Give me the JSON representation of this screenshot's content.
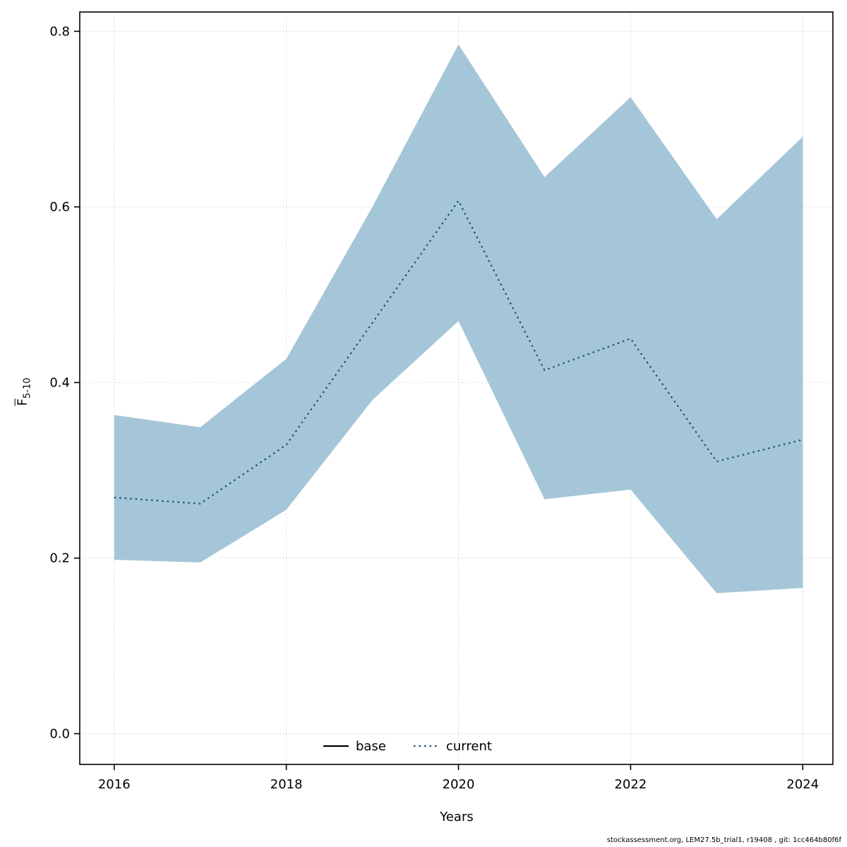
{
  "figure": {
    "footer_credit": "stockassessment.org, LEM27.5b_trial1, r19408 , git: 1cc464b80f6f"
  },
  "chart_data": {
    "type": "line",
    "title": "",
    "xlabel": "Years",
    "ylabel_base": "F",
    "ylabel_sub": "5-10",
    "x": [
      2016,
      2017,
      2018,
      2019,
      2020,
      2021,
      2022,
      2023,
      2024
    ],
    "series": [
      {
        "name": "current",
        "style": "dotted",
        "color": "#15527d",
        "values": [
          0.269,
          0.262,
          0.329,
          0.468,
          0.607,
          0.414,
          0.45,
          0.31,
          0.335
        ]
      }
    ],
    "band": {
      "name": "confidence-interval",
      "color": "#a5c6d8",
      "lower": [
        0.198,
        0.195,
        0.255,
        0.38,
        0.47,
        0.267,
        0.278,
        0.16,
        0.166
      ],
      "upper": [
        0.363,
        0.349,
        0.427,
        0.6,
        0.785,
        0.634,
        0.725,
        0.586,
        0.68
      ]
    },
    "legend": [
      {
        "label": "base",
        "style": "solid",
        "color": "#000000"
      },
      {
        "label": "current",
        "style": "dotted",
        "color": "#15527d"
      }
    ],
    "legend_position": "bottom-center-inside",
    "grid": true,
    "xlim": [
      2015.6,
      2024.35
    ],
    "ylim": [
      -0.035,
      0.822
    ],
    "xticks": [
      2016,
      2018,
      2020,
      2022,
      2024
    ],
    "xtick_labels": [
      "2016",
      "2018",
      "2020",
      "2022",
      "2024"
    ],
    "yticks": [
      0,
      0.2,
      0.4,
      0.6,
      0.8
    ],
    "ytick_labels": [
      "0.0",
      "0.2",
      "0.4",
      "0.6",
      "0.8"
    ]
  }
}
